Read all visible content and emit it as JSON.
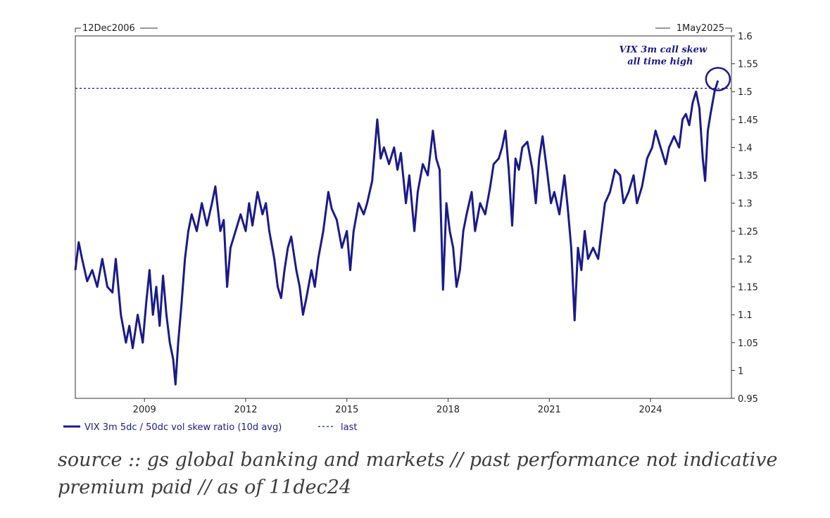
{
  "chart_data": {
    "type": "line",
    "title": "",
    "series": [
      {
        "name": "VIX 3m 5dc / 50dc vol skew ratio (10d avg)",
        "color": "#1a1a8c",
        "points": [
          [
            2006.95,
            1.18
          ],
          [
            2007.05,
            1.23
          ],
          [
            2007.15,
            1.2
          ],
          [
            2007.3,
            1.16
          ],
          [
            2007.45,
            1.18
          ],
          [
            2007.6,
            1.15
          ],
          [
            2007.75,
            1.2
          ],
          [
            2007.9,
            1.15
          ],
          [
            2008.05,
            1.14
          ],
          [
            2008.15,
            1.2
          ],
          [
            2008.3,
            1.1
          ],
          [
            2008.45,
            1.05
          ],
          [
            2008.55,
            1.08
          ],
          [
            2008.65,
            1.04
          ],
          [
            2008.8,
            1.1
          ],
          [
            2008.95,
            1.05
          ],
          [
            2009.05,
            1.12
          ],
          [
            2009.15,
            1.18
          ],
          [
            2009.25,
            1.1
          ],
          [
            2009.35,
            1.15
          ],
          [
            2009.45,
            1.08
          ],
          [
            2009.55,
            1.17
          ],
          [
            2009.65,
            1.1
          ],
          [
            2009.75,
            1.05
          ],
          [
            2009.85,
            1.02
          ],
          [
            2009.92,
            0.975
          ],
          [
            2010.0,
            1.05
          ],
          [
            2010.1,
            1.12
          ],
          [
            2010.2,
            1.2
          ],
          [
            2010.3,
            1.25
          ],
          [
            2010.4,
            1.28
          ],
          [
            2010.55,
            1.25
          ],
          [
            2010.7,
            1.3
          ],
          [
            2010.85,
            1.26
          ],
          [
            2011.0,
            1.3
          ],
          [
            2011.1,
            1.33
          ],
          [
            2011.25,
            1.25
          ],
          [
            2011.35,
            1.27
          ],
          [
            2011.45,
            1.15
          ],
          [
            2011.55,
            1.22
          ],
          [
            2011.7,
            1.25
          ],
          [
            2011.85,
            1.28
          ],
          [
            2012.0,
            1.25
          ],
          [
            2012.1,
            1.3
          ],
          [
            2012.2,
            1.26
          ],
          [
            2012.35,
            1.32
          ],
          [
            2012.5,
            1.28
          ],
          [
            2012.6,
            1.3
          ],
          [
            2012.7,
            1.25
          ],
          [
            2012.85,
            1.2
          ],
          [
            2012.95,
            1.15
          ],
          [
            2013.05,
            1.13
          ],
          [
            2013.15,
            1.18
          ],
          [
            2013.25,
            1.22
          ],
          [
            2013.35,
            1.24
          ],
          [
            2013.5,
            1.18
          ],
          [
            2013.6,
            1.15
          ],
          [
            2013.7,
            1.1
          ],
          [
            2013.8,
            1.13
          ],
          [
            2013.95,
            1.18
          ],
          [
            2014.05,
            1.15
          ],
          [
            2014.15,
            1.2
          ],
          [
            2014.3,
            1.25
          ],
          [
            2014.45,
            1.32
          ],
          [
            2014.55,
            1.29
          ],
          [
            2014.7,
            1.27
          ],
          [
            2014.85,
            1.22
          ],
          [
            2015.0,
            1.25
          ],
          [
            2015.1,
            1.18
          ],
          [
            2015.2,
            1.25
          ],
          [
            2015.35,
            1.3
          ],
          [
            2015.5,
            1.28
          ],
          [
            2015.6,
            1.3
          ],
          [
            2015.75,
            1.34
          ],
          [
            2015.9,
            1.45
          ],
          [
            2016.0,
            1.38
          ],
          [
            2016.1,
            1.4
          ],
          [
            2016.25,
            1.37
          ],
          [
            2016.4,
            1.4
          ],
          [
            2016.5,
            1.36
          ],
          [
            2016.6,
            1.39
          ],
          [
            2016.75,
            1.3
          ],
          [
            2016.85,
            1.35
          ],
          [
            2017.0,
            1.25
          ],
          [
            2017.1,
            1.32
          ],
          [
            2017.25,
            1.37
          ],
          [
            2017.4,
            1.35
          ],
          [
            2017.55,
            1.43
          ],
          [
            2017.65,
            1.38
          ],
          [
            2017.75,
            1.36
          ],
          [
            2017.85,
            1.145
          ],
          [
            2017.95,
            1.3
          ],
          [
            2018.05,
            1.25
          ],
          [
            2018.15,
            1.22
          ],
          [
            2018.25,
            1.15
          ],
          [
            2018.35,
            1.18
          ],
          [
            2018.45,
            1.25
          ],
          [
            2018.55,
            1.28
          ],
          [
            2018.7,
            1.32
          ],
          [
            2018.8,
            1.25
          ],
          [
            2018.95,
            1.3
          ],
          [
            2019.1,
            1.28
          ],
          [
            2019.25,
            1.33
          ],
          [
            2019.35,
            1.37
          ],
          [
            2019.5,
            1.38
          ],
          [
            2019.6,
            1.4
          ],
          [
            2019.7,
            1.43
          ],
          [
            2019.8,
            1.36
          ],
          [
            2019.9,
            1.26
          ],
          [
            2020.0,
            1.38
          ],
          [
            2020.1,
            1.36
          ],
          [
            2020.2,
            1.4
          ],
          [
            2020.35,
            1.41
          ],
          [
            2020.5,
            1.36
          ],
          [
            2020.6,
            1.3
          ],
          [
            2020.7,
            1.38
          ],
          [
            2020.8,
            1.42
          ],
          [
            2020.95,
            1.35
          ],
          [
            2021.05,
            1.3
          ],
          [
            2021.15,
            1.32
          ],
          [
            2021.3,
            1.28
          ],
          [
            2021.45,
            1.35
          ],
          [
            2021.55,
            1.29
          ],
          [
            2021.65,
            1.22
          ],
          [
            2021.75,
            1.09
          ],
          [
            2021.85,
            1.22
          ],
          [
            2021.95,
            1.18
          ],
          [
            2022.05,
            1.25
          ],
          [
            2022.15,
            1.2
          ],
          [
            2022.3,
            1.22
          ],
          [
            2022.45,
            1.2
          ],
          [
            2022.55,
            1.25
          ],
          [
            2022.65,
            1.3
          ],
          [
            2022.8,
            1.32
          ],
          [
            2022.95,
            1.36
          ],
          [
            2023.1,
            1.35
          ],
          [
            2023.2,
            1.3
          ],
          [
            2023.35,
            1.32
          ],
          [
            2023.5,
            1.35
          ],
          [
            2023.6,
            1.3
          ],
          [
            2023.75,
            1.33
          ],
          [
            2023.9,
            1.38
          ],
          [
            2024.05,
            1.4
          ],
          [
            2024.15,
            1.43
          ],
          [
            2024.3,
            1.4
          ],
          [
            2024.45,
            1.37
          ],
          [
            2024.55,
            1.4
          ],
          [
            2024.7,
            1.42
          ],
          [
            2024.85,
            1.4
          ],
          [
            2024.95,
            1.45
          ],
          [
            2025.05,
            1.46
          ],
          [
            2025.15,
            1.44
          ],
          [
            2025.25,
            1.48
          ],
          [
            2025.35,
            1.5
          ],
          [
            2025.45,
            1.47
          ],
          [
            2025.55,
            1.38
          ],
          [
            2025.62,
            1.34
          ],
          [
            2025.7,
            1.43
          ],
          [
            2025.78,
            1.46
          ],
          [
            2025.9,
            1.5
          ],
          [
            2026.0,
            1.52
          ]
        ]
      }
    ],
    "reference_lines": [
      {
        "name": "last",
        "value": 1.506,
        "style": "dashed"
      }
    ],
    "x_axis": {
      "xlim": [
        2006.95,
        2026.4
      ],
      "ticks": [
        {
          "value": 2009,
          "label": "2009"
        },
        {
          "value": 2012,
          "label": "2012"
        },
        {
          "value": 2015,
          "label": "2015"
        },
        {
          "value": 2018,
          "label": "2018"
        },
        {
          "value": 2021,
          "label": "2021"
        },
        {
          "value": 2024,
          "label": "2024"
        }
      ],
      "start_label": "12Dec2006",
      "end_label": "1May2025"
    },
    "y_axis": {
      "ylim": [
        0.95,
        1.6
      ],
      "position": "right",
      "ticks": [
        0.95,
        1,
        1.05,
        1.1,
        1.15,
        1.2,
        1.25,
        1.3,
        1.35,
        1.4,
        1.45,
        1.5,
        1.55,
        1.6
      ],
      "tick_labels": [
        "0.95",
        "1",
        "1.05",
        "1.1",
        "1.15",
        "1.2",
        "1.25",
        "1.3",
        "1.35",
        "1.4",
        "1.45",
        "1.5",
        "1.55",
        "1.6"
      ]
    },
    "legend": {
      "placement": "bottom-left",
      "entries": [
        {
          "label": "VIX 3m 5dc / 50dc vol skew ratio (10d avg)",
          "style": "solid"
        },
        {
          "label": "last",
          "style": "dashed"
        }
      ]
    },
    "annotations": [
      {
        "line1": "VIX 3m call skew",
        "line2": "all time high",
        "x": 2026.0,
        "y": 1.52
      }
    ],
    "grid": false
  },
  "source": {
    "line1": "source :: gs global banking and markets // past performance not indicative",
    "line2": "premium paid // as of 11dec24"
  }
}
